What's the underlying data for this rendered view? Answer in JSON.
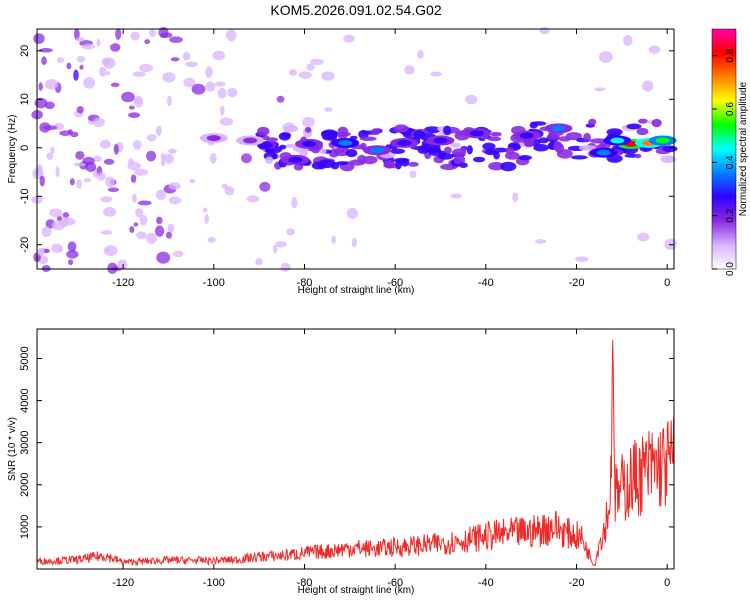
{
  "title": "KOM5.2026.091.02.54.G02",
  "colors": {
    "line": "#ee2b2b",
    "axis": "#000000"
  },
  "chart_data": [
    {
      "type": "heatmap",
      "title": "KOM5.2026.091.02.54.G02",
      "xlabel": "Height of straight line (km)",
      "ylabel": "Frequency (Hz)",
      "xlim": [
        -139,
        1.5
      ],
      "ylim": [
        -25,
        24.5
      ],
      "xticks": [
        -120,
        -100,
        -80,
        -60,
        -40,
        -20,
        0
      ],
      "yticks": [
        20,
        10,
        0,
        -10,
        -20
      ],
      "colorbar": {
        "label": "Normalized spectral amplitude",
        "range": [
          0,
          0.9
        ],
        "ticks": [
          0.0,
          0.2,
          0.4,
          0.6,
          0.8
        ],
        "colormap": [
          "#ffffff",
          "#d9b3ff",
          "#8a2be2",
          "#3300ff",
          "#0080ff",
          "#00ffff",
          "#00ff00",
          "#ffff00",
          "#ff8000",
          "#ff0000",
          "#ff00aa"
        ]
      },
      "blobs": [
        {
          "x": -8,
          "f": 0.8,
          "v": 0.85
        },
        {
          "x": -4,
          "f": 1.0,
          "v": 0.75
        },
        {
          "x": -1,
          "f": 1.5,
          "v": 0.55
        },
        {
          "x": -11,
          "f": 1.5,
          "v": 0.45
        },
        {
          "x": -14,
          "f": -1.0,
          "v": 0.4
        },
        {
          "x": -24,
          "f": 4.0,
          "v": 0.35
        },
        {
          "x": -31,
          "f": 2.5,
          "v": 0.3
        },
        {
          "x": -42,
          "f": 3.0,
          "v": 0.3
        },
        {
          "x": -50,
          "f": 1.5,
          "v": 0.25
        },
        {
          "x": -58,
          "f": 1.0,
          "v": 0.28
        },
        {
          "x": -64,
          "f": -0.5,
          "v": 0.35
        },
        {
          "x": -71,
          "f": 1.0,
          "v": 0.38
        },
        {
          "x": -79,
          "f": 0.8,
          "v": 0.3
        },
        {
          "x": -82,
          "f": -2.5,
          "v": 0.28
        },
        {
          "x": -92,
          "f": 1.5,
          "v": 0.2
        },
        {
          "x": -100,
          "f": 2.0,
          "v": 0.15
        }
      ]
    },
    {
      "type": "line",
      "xlabel": "Height of straight line (km)",
      "ylabel": "SNR (10 * v/v)",
      "xlim": [
        -139,
        1.5
      ],
      "ylim": [
        0,
        5700
      ],
      "xticks": [
        -120,
        -100,
        -80,
        -60,
        -40,
        -20,
        0
      ],
      "yticks": [
        1000,
        2000,
        3000,
        4000,
        5000
      ],
      "series": [
        {
          "name": "SNR",
          "x": [
            -139,
            -130,
            -124,
            -120,
            -110,
            -100,
            -95,
            -90,
            -85,
            -80,
            -75,
            -70,
            -65,
            -60,
            -55,
            -50,
            -45,
            -40,
            -35,
            -30,
            -25,
            -22,
            -19,
            -17,
            -16,
            -15,
            -14,
            -13,
            -12.5,
            -12,
            -11.5,
            -11,
            -10,
            -8,
            -6,
            -4,
            -2,
            0,
            1.5
          ],
          "values": [
            180,
            220,
            320,
            160,
            210,
            200,
            220,
            290,
            320,
            380,
            420,
            500,
            480,
            520,
            560,
            600,
            680,
            780,
            840,
            880,
            1010,
            850,
            760,
            300,
            80,
            620,
            900,
            1450,
            1700,
            5600,
            1800,
            1700,
            1900,
            2100,
            2250,
            2350,
            2450,
            2500,
            2600
          ]
        }
      ]
    }
  ]
}
